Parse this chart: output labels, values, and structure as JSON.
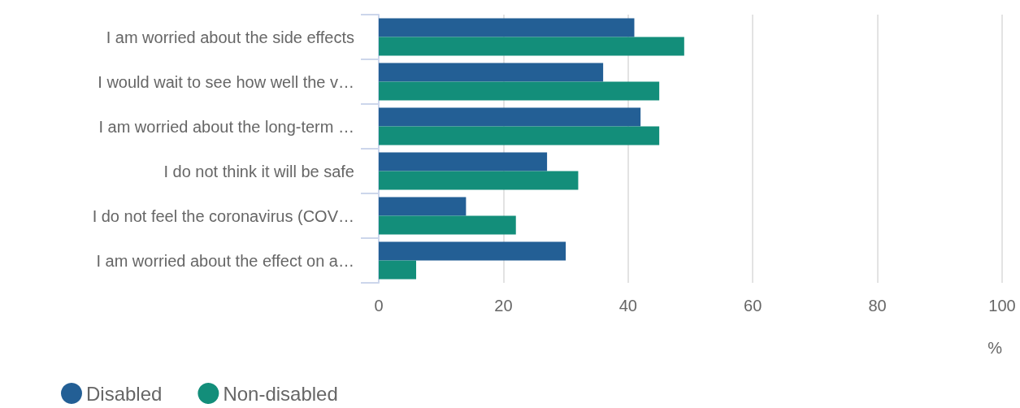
{
  "chart_data": {
    "type": "bar",
    "orientation": "horizontal",
    "xlabel": "%",
    "categories": [
      "I am worried about the side effects",
      "I would wait to see how well the v…",
      "I am worried about the long-term …",
      "I do not think it will be safe",
      "I do not feel the coronavirus (COV…",
      "I am worried about the effect on a…"
    ],
    "series": [
      {
        "name": "Disabled",
        "color": "#235f95",
        "values": [
          41,
          36,
          42,
          27,
          14,
          30
        ]
      },
      {
        "name": "Non-disabled",
        "color": "#138e7a",
        "values": [
          49,
          45,
          45,
          32,
          22,
          6
        ]
      }
    ],
    "xlim": [
      0,
      100
    ],
    "xticks": [
      0,
      20,
      40,
      60,
      80,
      100
    ],
    "grid": "x",
    "legend": "bottom left"
  }
}
